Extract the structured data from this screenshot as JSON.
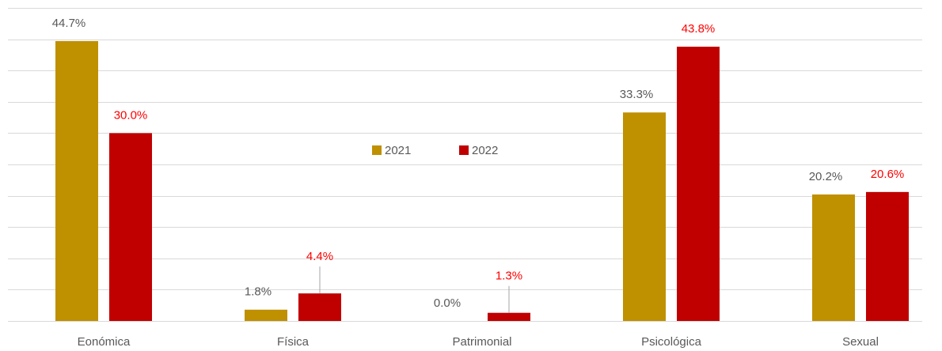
{
  "chart_data": {
    "type": "bar",
    "categories": [
      "Eonómica",
      "Física",
      "Patrimonial",
      "Psicológica",
      "Sexual"
    ],
    "series": [
      {
        "name": "2021",
        "color": "#bf9000",
        "label_color": "#595959",
        "values": [
          44.7,
          1.8,
          0.0,
          33.3,
          20.2
        ],
        "value_labels": [
          "44.7%",
          "1.8%",
          "0.0%",
          "33.3%",
          "20.2%"
        ]
      },
      {
        "name": "2022",
        "color": "#c00000",
        "label_color": "#ff0000",
        "values": [
          30.0,
          4.4,
          1.3,
          43.8,
          20.6
        ],
        "value_labels": [
          "30.0%",
          "4.4%",
          "1.3%",
          "43.8%",
          "20.6%"
        ]
      }
    ],
    "ylim": [
      0,
      50
    ],
    "yticks": [
      0,
      5,
      10,
      15,
      20,
      25,
      30,
      35,
      40,
      45,
      50
    ],
    "grid": true
  }
}
